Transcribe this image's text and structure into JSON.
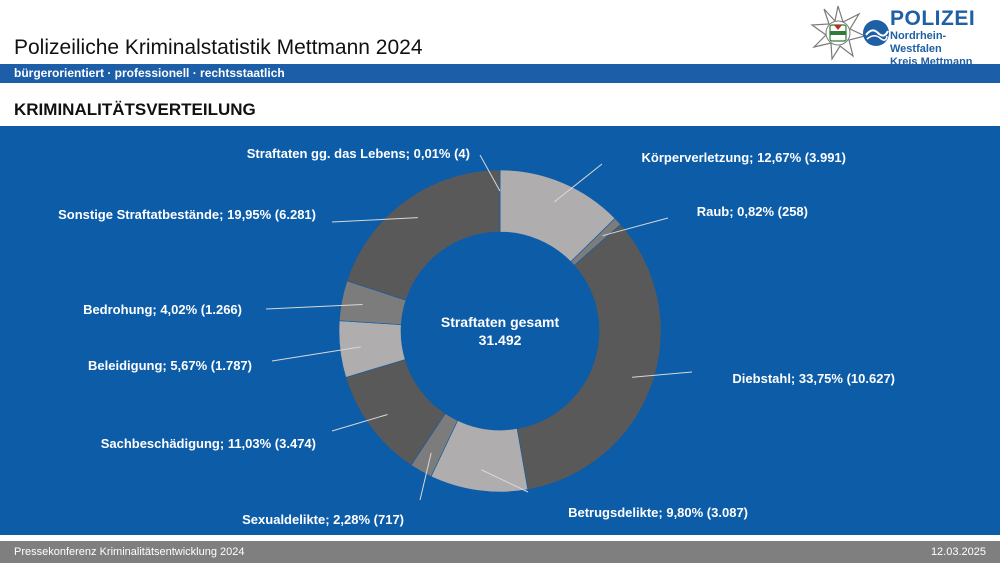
{
  "header": {
    "title": "Polizeiliche Kriminalstatistik Mettmann 2024",
    "logo_main": "POLIZEI",
    "logo_sub1": "Nordrhein-Westfalen",
    "logo_sub2": "Kreis Mettmann",
    "tagline": "bürgerorientiert · professionell · rechtsstaatlich"
  },
  "section_title": "KRIMINALITÄTSVERTEILUNG",
  "chart_data": {
    "type": "pie",
    "donut": true,
    "center_label": "Straftaten gesamt",
    "center_value": "31.492",
    "slices": [
      {
        "label": "Körperverletzung; 12,67% (3.991)",
        "name": "Körperverletzung",
        "percent": 12.67,
        "count": 3991,
        "color": "#afadad"
      },
      {
        "label": "Raub; 0,82% (258)",
        "name": "Raub",
        "percent": 0.82,
        "count": 258,
        "color": "#7c7c7c"
      },
      {
        "label": "Diebstahl; 33,75% (10.627)",
        "name": "Diebstahl",
        "percent": 33.75,
        "count": 10627,
        "color": "#595959"
      },
      {
        "label": "Betrugsdelikte; 9,80% (3.087)",
        "name": "Betrugsdelikte",
        "percent": 9.8,
        "count": 3087,
        "color": "#afadad"
      },
      {
        "label": "Sexualdelikte; 2,28% (717)",
        "name": "Sexualdelikte",
        "percent": 2.28,
        "count": 717,
        "color": "#7c7c7c"
      },
      {
        "label": "Sachbeschädigung; 11,03% (3.474)",
        "name": "Sachbeschädigung",
        "percent": 11.03,
        "count": 3474,
        "color": "#595959"
      },
      {
        "label": "Beleidigung; 5,67% (1.787)",
        "name": "Beleidigung",
        "percent": 5.67,
        "count": 1787,
        "color": "#afadad"
      },
      {
        "label": "Bedrohung; 4,02% (1.266)",
        "name": "Bedrohung",
        "percent": 4.02,
        "count": 1266,
        "color": "#7c7c7c"
      },
      {
        "label": "Sonstige Straftatbestände; 19,95% (6.281)",
        "name": "Sonstige Straftatbestände",
        "percent": 19.95,
        "count": 6281,
        "color": "#595959"
      },
      {
        "label": "Straftaten gg. das Lebens; 0,01% (4)",
        "name": "Straftaten gg. das Lebens",
        "percent": 0.01,
        "count": 4,
        "color": "#afadad"
      }
    ]
  },
  "footer": {
    "left": "Pressekonferenz Kriminalitätsentwicklung 2024",
    "right": "12.03.2025"
  }
}
